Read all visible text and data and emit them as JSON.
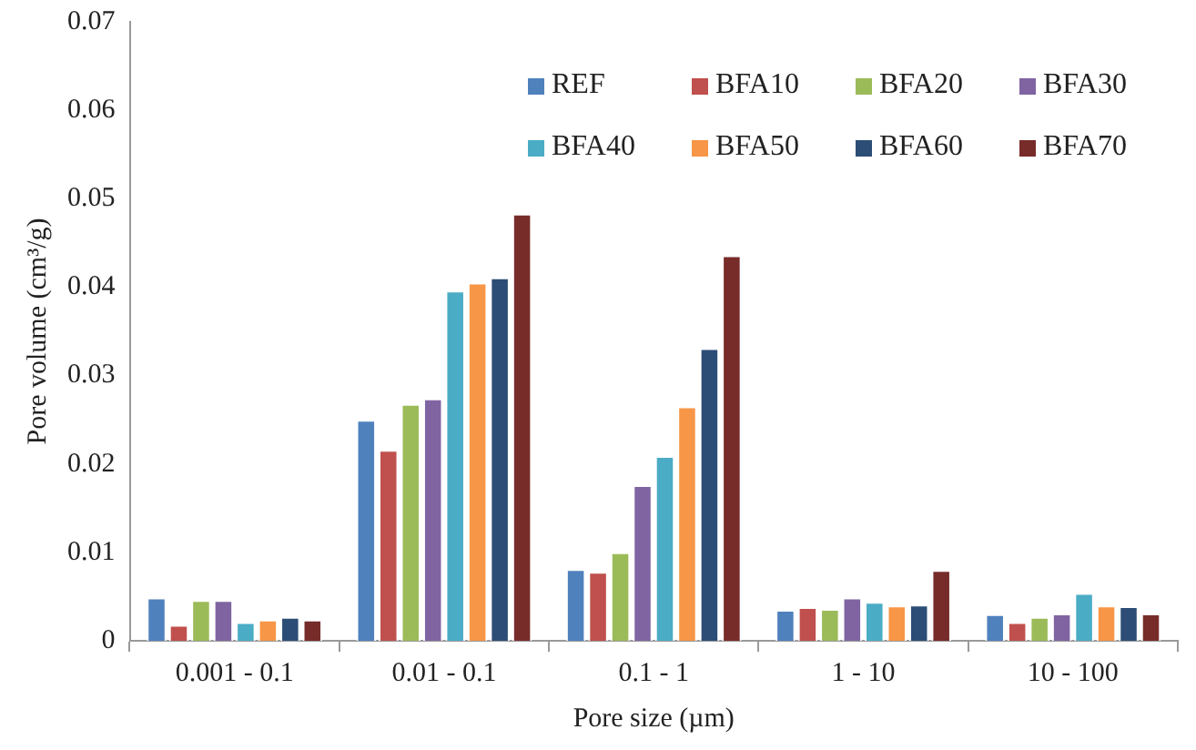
{
  "chart_data": {
    "type": "bar",
    "xlabel": "Pore size (µm)",
    "ylabel": "Pore volume (cm³/g)",
    "categories": [
      "0.001 - 0.1",
      "0.01 - 0.1",
      "0.1 - 1",
      "1 - 10",
      "10 - 100"
    ],
    "series": [
      {
        "name": "REF",
        "color": "#4f81bd",
        "values": [
          0.0049,
          0.025,
          0.0081,
          0.0035,
          0.003
        ]
      },
      {
        "name": "BFA10",
        "color": "#c0504d",
        "values": [
          0.0018,
          0.0216,
          0.0078,
          0.0038,
          0.0021
        ]
      },
      {
        "name": "BFA20",
        "color": "#9bbb59",
        "values": [
          0.0046,
          0.0268,
          0.01,
          0.0036,
          0.0027
        ]
      },
      {
        "name": "BFA30",
        "color": "#8064a2",
        "values": [
          0.0046,
          0.0274,
          0.0176,
          0.0049,
          0.0031
        ]
      },
      {
        "name": "BFA40",
        "color": "#4bacc6",
        "values": [
          0.0021,
          0.0396,
          0.0209,
          0.0044,
          0.0054
        ]
      },
      {
        "name": "BFA50",
        "color": "#f79646",
        "values": [
          0.0024,
          0.0405,
          0.0265,
          0.004,
          0.004
        ]
      },
      {
        "name": "BFA60",
        "color": "#2c4d75",
        "values": [
          0.0027,
          0.0411,
          0.0331,
          0.0041,
          0.0039
        ]
      },
      {
        "name": "BFA70",
        "color": "#772c2a",
        "values": [
          0.0024,
          0.0483,
          0.0436,
          0.008,
          0.0031
        ]
      }
    ],
    "ylim": [
      0,
      0.07
    ],
    "yticks": [
      0,
      0.01,
      0.02,
      0.03,
      0.04,
      0.05,
      0.06,
      0.07
    ],
    "grid": false,
    "legend": "top right"
  }
}
